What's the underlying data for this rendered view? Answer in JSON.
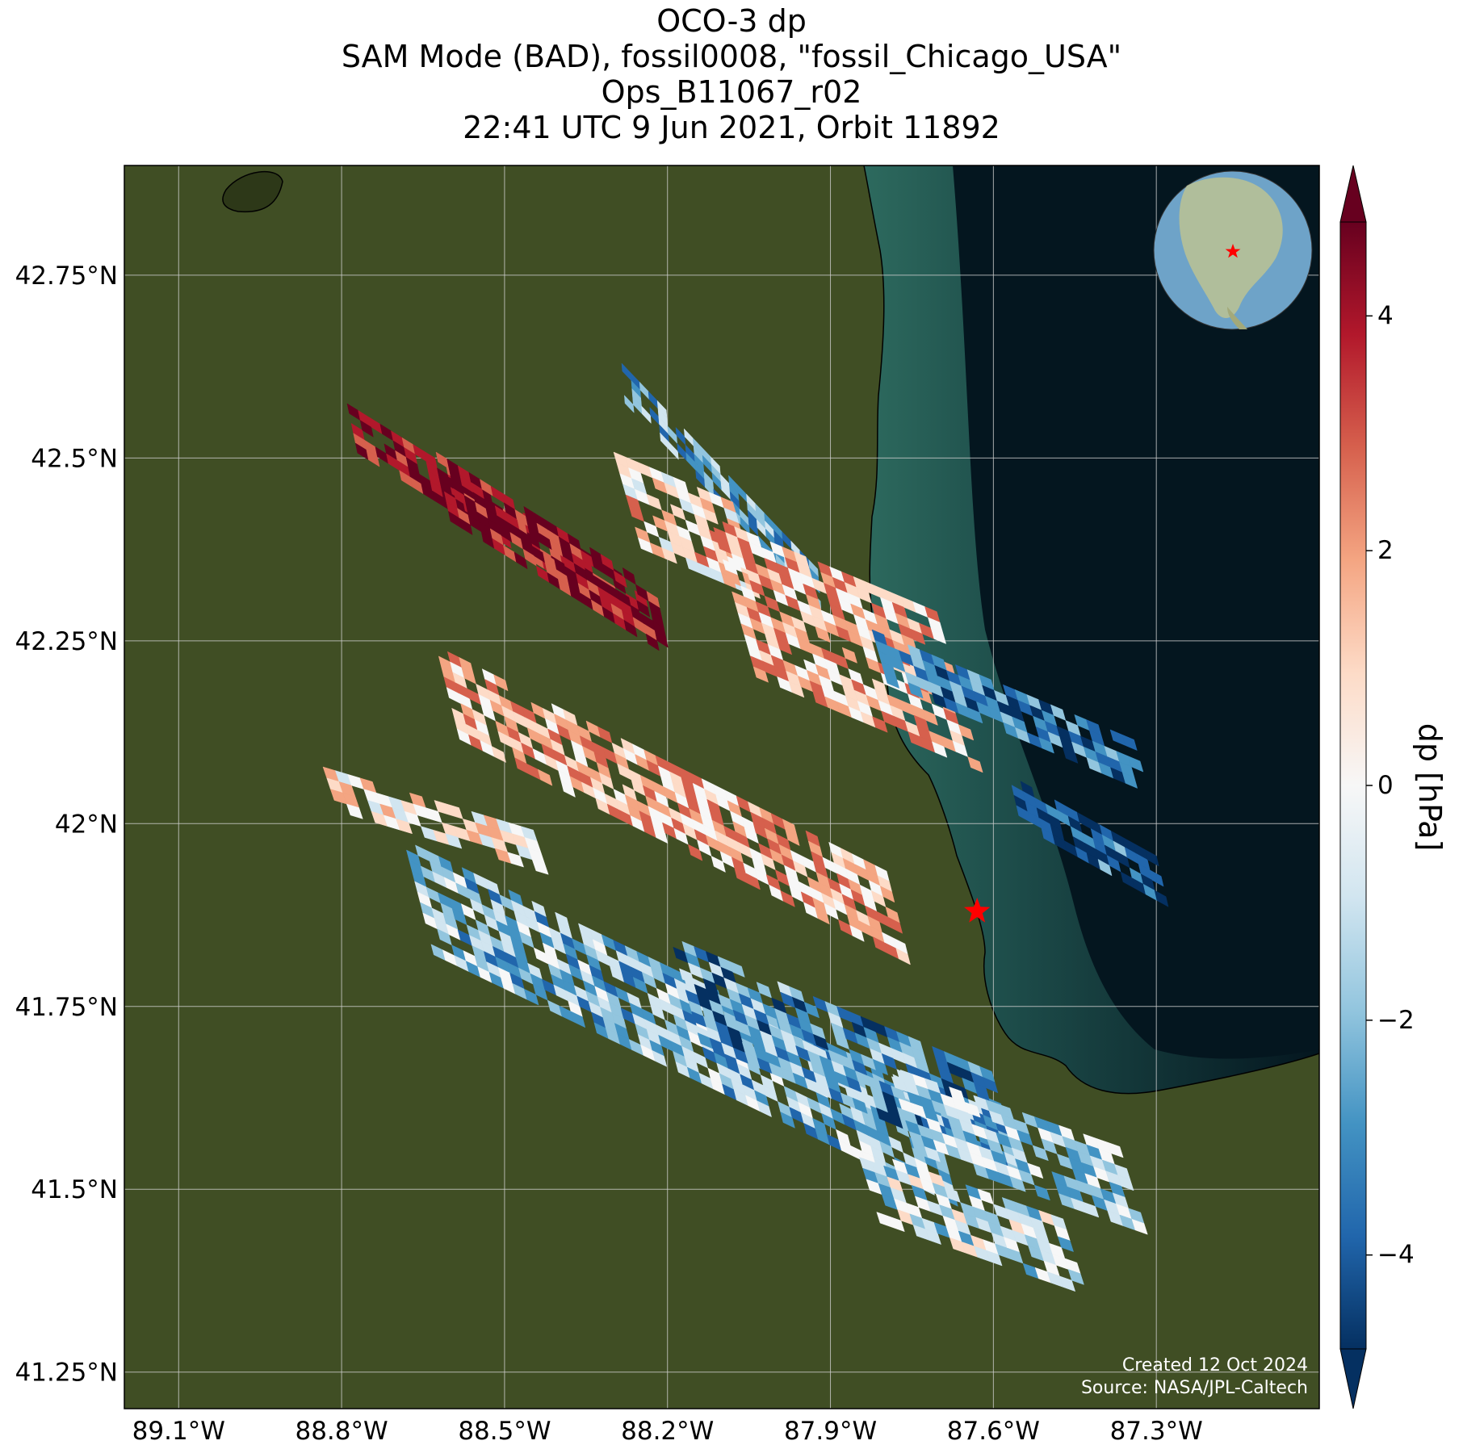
{
  "title": {
    "line1": "OCO-3 dp",
    "line2": "SAM Mode (BAD), fossil0008, \"fossil_Chicago_USA\"",
    "line3": "Ops_B11067_r02",
    "line4": "22:41 UTC 9 Jun 2021, Orbit 11892"
  },
  "axes": {
    "x_ticks": [
      {
        "value": -89.1,
        "label": "89.1°W"
      },
      {
        "value": -88.8,
        "label": "88.8°W"
      },
      {
        "value": -88.5,
        "label": "88.5°W"
      },
      {
        "value": -88.2,
        "label": "88.2°W"
      },
      {
        "value": -87.9,
        "label": "87.9°W"
      },
      {
        "value": -87.6,
        "label": "87.6°W"
      },
      {
        "value": -87.3,
        "label": "87.3°W"
      }
    ],
    "y_ticks": [
      {
        "value": 42.75,
        "label": "42.75°N"
      },
      {
        "value": 42.5,
        "label": "42.5°N"
      },
      {
        "value": 42.25,
        "label": "42.25°N"
      },
      {
        "value": 42.0,
        "label": "42°N"
      },
      {
        "value": 41.75,
        "label": "41.75°N"
      },
      {
        "value": 41.5,
        "label": "41.5°N"
      },
      {
        "value": 41.25,
        "label": "41.25°N"
      }
    ],
    "lon_range": [
      -89.2,
      -87.0
    ],
    "lat_range": [
      41.2,
      42.9
    ]
  },
  "colorbar": {
    "label": "dp [hPa]",
    "range": [
      -4.8,
      4.8
    ],
    "ticks": [
      {
        "value": 4,
        "label": "4"
      },
      {
        "value": 2,
        "label": "2"
      },
      {
        "value": 0,
        "label": "0"
      },
      {
        "value": -2,
        "label": "−2"
      },
      {
        "value": -4,
        "label": "−4"
      }
    ]
  },
  "target": {
    "name": "fossil_Chicago_USA",
    "lon": -87.63,
    "lat": 41.88
  },
  "credits": {
    "created": "Created 12 Oct 2024",
    "source": "Source: NASA/JPL-Caltech"
  },
  "colors": {
    "land": "#3d4a22",
    "lake_deep": "#04161f",
    "lake_shallow": "#2a5a54",
    "grid": "#cfcfcf",
    "target_star": "#ff0000",
    "cb_neg": "#053061",
    "cb_pos": "#67001f"
  }
}
